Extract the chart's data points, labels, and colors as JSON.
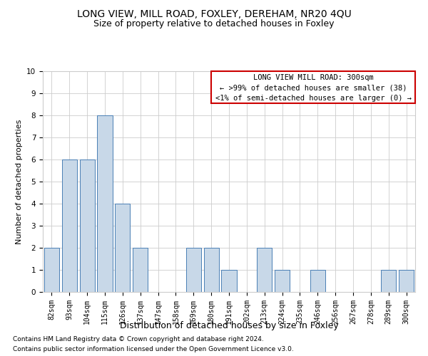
{
  "title": "LONG VIEW, MILL ROAD, FOXLEY, DEREHAM, NR20 4QU",
  "subtitle": "Size of property relative to detached houses in Foxley",
  "xlabel": "Distribution of detached houses by size in Foxley",
  "ylabel": "Number of detached properties",
  "categories": [
    "82sqm",
    "93sqm",
    "104sqm",
    "115sqm",
    "126sqm",
    "137sqm",
    "147sqm",
    "158sqm",
    "169sqm",
    "180sqm",
    "191sqm",
    "202sqm",
    "213sqm",
    "224sqm",
    "235sqm",
    "246sqm",
    "256sqm",
    "267sqm",
    "278sqm",
    "289sqm",
    "300sqm"
  ],
  "values": [
    2,
    6,
    6,
    8,
    4,
    2,
    0,
    0,
    2,
    2,
    1,
    0,
    2,
    1,
    0,
    1,
    0,
    0,
    0,
    1,
    1
  ],
  "bar_color": "#c8d8e8",
  "bar_edge_color": "#4a7fb5",
  "box_color": "#cc0000",
  "legend_title": "LONG VIEW MILL ROAD: 300sqm",
  "legend_line1": "← >99% of detached houses are smaller (38)",
  "legend_line2": "<1% of semi-detached houses are larger (0) →",
  "ylim": [
    0,
    10
  ],
  "yticks": [
    0,
    1,
    2,
    3,
    4,
    5,
    6,
    7,
    8,
    9,
    10
  ],
  "footer1": "Contains HM Land Registry data © Crown copyright and database right 2024.",
  "footer2": "Contains public sector information licensed under the Open Government Licence v3.0.",
  "background_color": "#ffffff",
  "grid_color": "#cccccc",
  "title_fontsize": 10,
  "subtitle_fontsize": 9,
  "xlabel_fontsize": 9,
  "ylabel_fontsize": 8,
  "tick_fontsize": 7,
  "legend_fontsize": 7.5,
  "footer_fontsize": 6.5
}
